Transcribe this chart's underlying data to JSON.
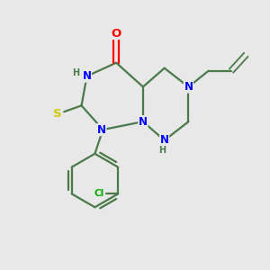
{
  "background_color": "#e8e8e8",
  "bond_color": "#4a7a4a",
  "bond_width": 1.6,
  "atom_colors": {
    "N": "#0000ff",
    "O": "#ff0000",
    "S": "#cccc00",
    "Cl": "#00aa00",
    "H_gray": "#4a7a4a"
  },
  "font_size_atom": 8.5,
  "font_size_small": 7.0
}
